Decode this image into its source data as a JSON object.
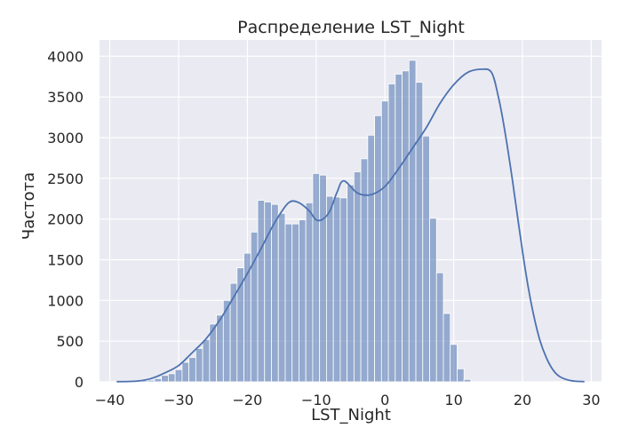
{
  "chart_data": {
    "type": "bar",
    "title": "Распределение LST_Night",
    "xlabel": "LST_Night",
    "ylabel": "Частота",
    "xlim": [
      -41.5,
      31.5
    ],
    "ylim": [
      0,
      4200
    ],
    "xticks": [
      -40,
      -30,
      -20,
      -10,
      0,
      10,
      20,
      30
    ],
    "xtick_labels": [
      "−40",
      "−30",
      "−20",
      "−10",
      "0",
      "10",
      "20",
      "30"
    ],
    "yticks": [
      0,
      500,
      1000,
      1500,
      2000,
      2500,
      3000,
      3500,
      4000
    ],
    "ytick_labels": [
      "0",
      "500",
      "1000",
      "1500",
      "2000",
      "2500",
      "3000",
      "3500",
      "4000"
    ],
    "grid": true,
    "bar_color": "#4c72b0",
    "bar_opacity": 0.55,
    "line_color": "#4c72b0",
    "background_color": "#eaeaf2",
    "bins": [
      {
        "x0": -39.5,
        "x1": -38.5,
        "count": 5
      },
      {
        "x0": -38.5,
        "x1": -37.5,
        "count": 5
      },
      {
        "x0": -37.5,
        "x1": -36.5,
        "count": 8
      },
      {
        "x0": -36.5,
        "x1": -35.5,
        "count": 10
      },
      {
        "x0": -35.5,
        "x1": -34.5,
        "count": 15
      },
      {
        "x0": -34.5,
        "x1": -33.5,
        "count": 20
      },
      {
        "x0": -33.5,
        "x1": -32.5,
        "count": 40
      },
      {
        "x0": -32.5,
        "x1": -31.5,
        "count": 80
      },
      {
        "x0": -31.5,
        "x1": -30.5,
        "count": 100
      },
      {
        "x0": -30.5,
        "x1": -29.5,
        "count": 150
      },
      {
        "x0": -29.5,
        "x1": -28.5,
        "count": 240
      },
      {
        "x0": -28.5,
        "x1": -27.5,
        "count": 300
      },
      {
        "x0": -27.5,
        "x1": -26.5,
        "count": 410
      },
      {
        "x0": -26.5,
        "x1": -25.5,
        "count": 520
      },
      {
        "x0": -25.5,
        "x1": -24.5,
        "count": 710
      },
      {
        "x0": -24.5,
        "x1": -23.5,
        "count": 820
      },
      {
        "x0": -23.5,
        "x1": -22.5,
        "count": 1000
      },
      {
        "x0": -22.5,
        "x1": -21.5,
        "count": 1210
      },
      {
        "x0": -21.5,
        "x1": -20.5,
        "count": 1400
      },
      {
        "x0": -20.5,
        "x1": -19.5,
        "count": 1580
      },
      {
        "x0": -19.5,
        "x1": -18.5,
        "count": 1840
      },
      {
        "x0": -18.5,
        "x1": -17.5,
        "count": 2230
      },
      {
        "x0": -17.5,
        "x1": -16.5,
        "count": 2210
      },
      {
        "x0": -16.5,
        "x1": -15.5,
        "count": 2180
      },
      {
        "x0": -15.5,
        "x1": -14.5,
        "count": 2070
      },
      {
        "x0": -14.5,
        "x1": -13.5,
        "count": 1940
      },
      {
        "x0": -13.5,
        "x1": -12.5,
        "count": 1940
      },
      {
        "x0": -12.5,
        "x1": -11.5,
        "count": 1990
      },
      {
        "x0": -11.5,
        "x1": -10.5,
        "count": 2200
      },
      {
        "x0": -10.5,
        "x1": -9.5,
        "count": 2560
      },
      {
        "x0": -9.5,
        "x1": -8.5,
        "count": 2540
      },
      {
        "x0": -8.5,
        "x1": -7.5,
        "count": 2280
      },
      {
        "x0": -7.5,
        "x1": -6.5,
        "count": 2270
      },
      {
        "x0": -6.5,
        "x1": -5.5,
        "count": 2260
      },
      {
        "x0": -5.5,
        "x1": -4.5,
        "count": 2420
      },
      {
        "x0": -4.5,
        "x1": -3.5,
        "count": 2580
      },
      {
        "x0": -3.5,
        "x1": -2.5,
        "count": 2740
      },
      {
        "x0": -2.5,
        "x1": -1.5,
        "count": 3030
      },
      {
        "x0": -1.5,
        "x1": -0.5,
        "count": 3270
      },
      {
        "x0": -0.5,
        "x1": 0.5,
        "count": 3450
      },
      {
        "x0": 0.5,
        "x1": 1.5,
        "count": 3660
      },
      {
        "x0": 1.5,
        "x1": 2.5,
        "count": 3780
      },
      {
        "x0": 2.5,
        "x1": 3.5,
        "count": 3820
      },
      {
        "x0": 3.5,
        "x1": 4.5,
        "count": 3950
      },
      {
        "x0": 4.5,
        "x1": 5.5,
        "count": 3680
      },
      {
        "x0": 5.5,
        "x1": 6.5,
        "count": 3020
      },
      {
        "x0": 6.5,
        "x1": 7.5,
        "count": 2010
      },
      {
        "x0": 7.5,
        "x1": 8.5,
        "count": 1340
      },
      {
        "x0": 8.5,
        "x1": 9.5,
        "count": 840
      },
      {
        "x0": 9.5,
        "x1": 10.5,
        "count": 460
      },
      {
        "x0": 10.5,
        "x1": 11.5,
        "count": 160
      },
      {
        "x0": 11.5,
        "x1": 12.5,
        "count": 30
      }
    ],
    "kde": {
      "x": [
        -39,
        -36,
        -34,
        -32,
        -30,
        -28,
        -26,
        -24,
        -22,
        -20,
        -18,
        -16,
        -14,
        -12.5,
        -11,
        -10,
        -9,
        -8,
        -7,
        -6,
        -4,
        -2,
        0,
        2,
        4,
        6,
        8,
        10,
        12,
        14,
        15.5,
        16.5,
        17.5,
        18.5,
        19.5,
        20.5,
        21.5,
        22.5,
        23.5,
        24.5,
        25.5,
        27,
        29
      ],
      "y": [
        2,
        10,
        40,
        110,
        200,
        360,
        530,
        760,
        1040,
        1330,
        1640,
        1960,
        2200,
        2200,
        2100,
        1990,
        2000,
        2100,
        2320,
        2470,
        2320,
        2300,
        2400,
        2620,
        2870,
        3120,
        3420,
        3650,
        3800,
        3840,
        3800,
        3500,
        3050,
        2500,
        1900,
        1330,
        870,
        520,
        290,
        140,
        60,
        15,
        2
      ]
    }
  }
}
